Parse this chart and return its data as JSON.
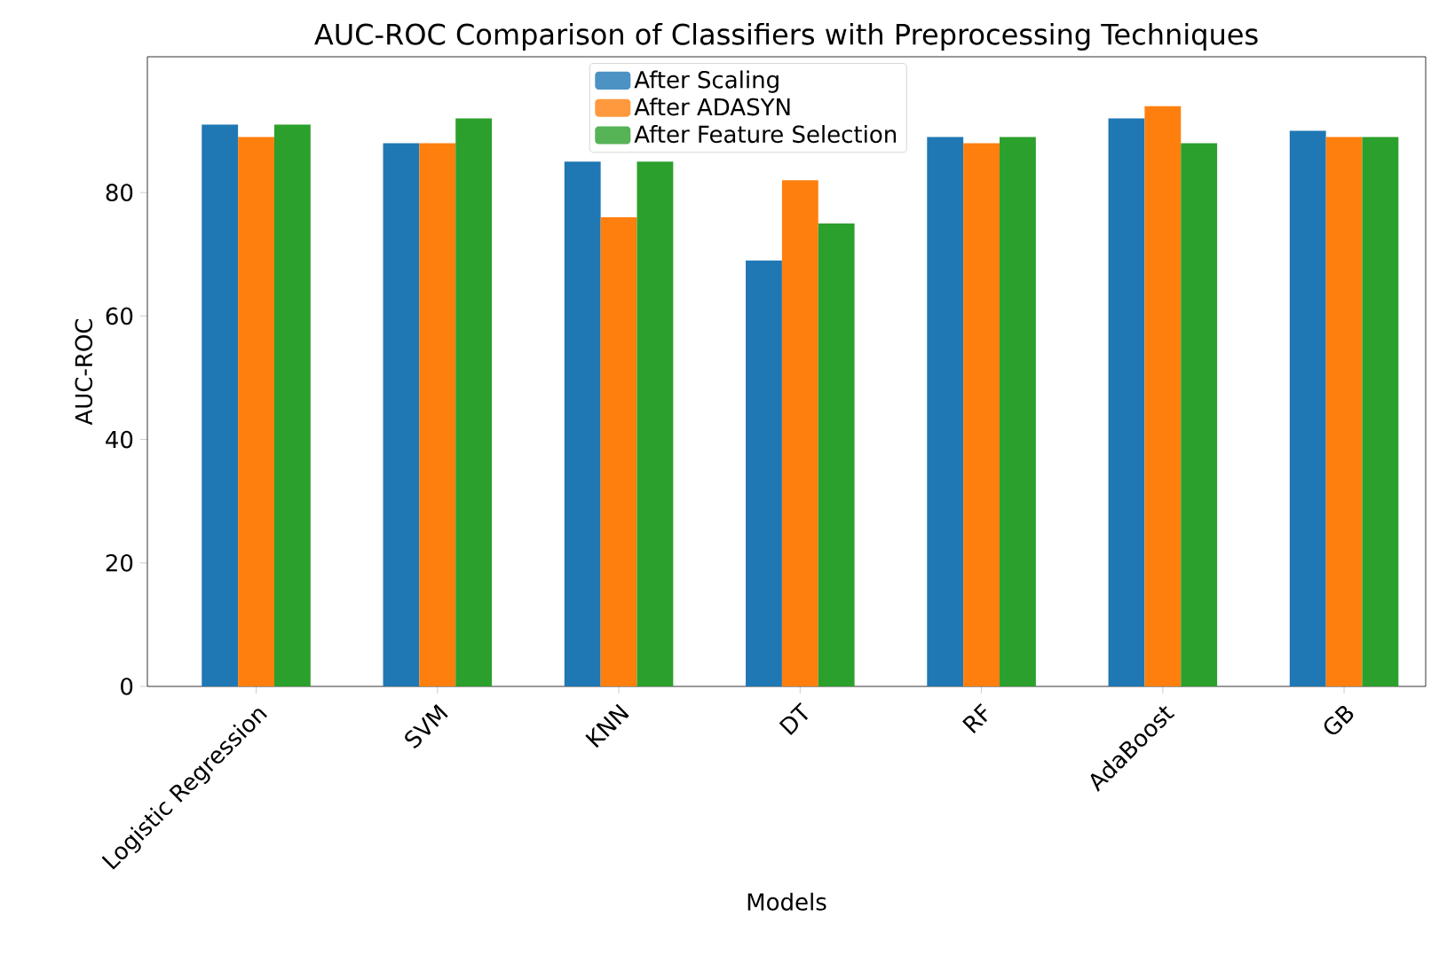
{
  "chart_data": {
    "type": "bar",
    "title": "AUC-ROC Comparison of Classifiers with Preprocessing Techniques",
    "xlabel": "Models",
    "ylabel": "AUC-ROC",
    "categories": [
      "Logistic Regression",
      "SVM",
      "KNN",
      "DT",
      "RF",
      "AdaBoost",
      "GB"
    ],
    "series": [
      {
        "name": "After Scaling",
        "color": "#1f77b4",
        "values": [
          91,
          88,
          85,
          69,
          89,
          92,
          90
        ]
      },
      {
        "name": "After ADASYN",
        "color": "#ff7f0e",
        "values": [
          89,
          88,
          76,
          82,
          88,
          94,
          89
        ]
      },
      {
        "name": "After Feature Selection",
        "color": "#2ca02c",
        "values": [
          91,
          92,
          85,
          75,
          89,
          88,
          89
        ]
      }
    ],
    "ylim": [
      0,
      102
    ],
    "yticks": [
      0,
      20,
      40,
      60,
      80
    ],
    "legend": "top",
    "grid": false
  }
}
